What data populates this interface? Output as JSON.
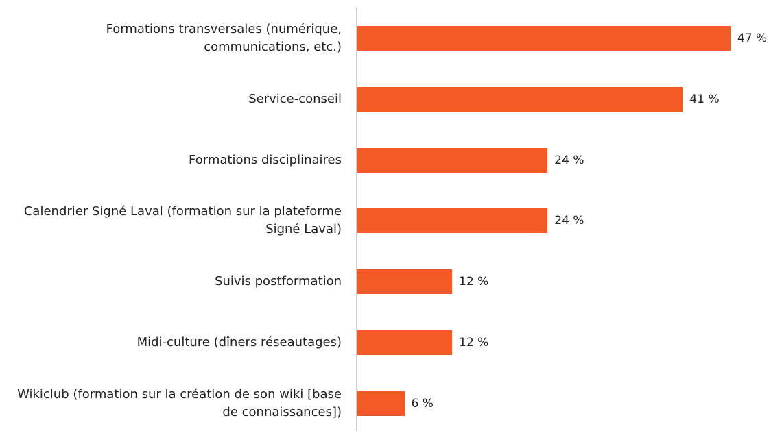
{
  "chart_data": {
    "type": "bar",
    "orientation": "horizontal",
    "categories": [
      "Formations transversales (numérique, communications, etc.)",
      "Service-conseil",
      "Formations disciplinaires",
      "Calendrier Signé Laval (formation sur la plateforme Signé Laval)",
      "Suivis postformation",
      "Midi-culture (dîners réseautages)",
      "Wikiclub (formation sur la création de son wiki [base de connaissances])"
    ],
    "values": [
      47,
      41,
      24,
      24,
      12,
      12,
      6
    ],
    "value_labels": [
      "47 %",
      "41 %",
      "24 %",
      "24 %",
      "12 %",
      "12 %",
      "6 %"
    ],
    "color": "#f15a24"
  }
}
